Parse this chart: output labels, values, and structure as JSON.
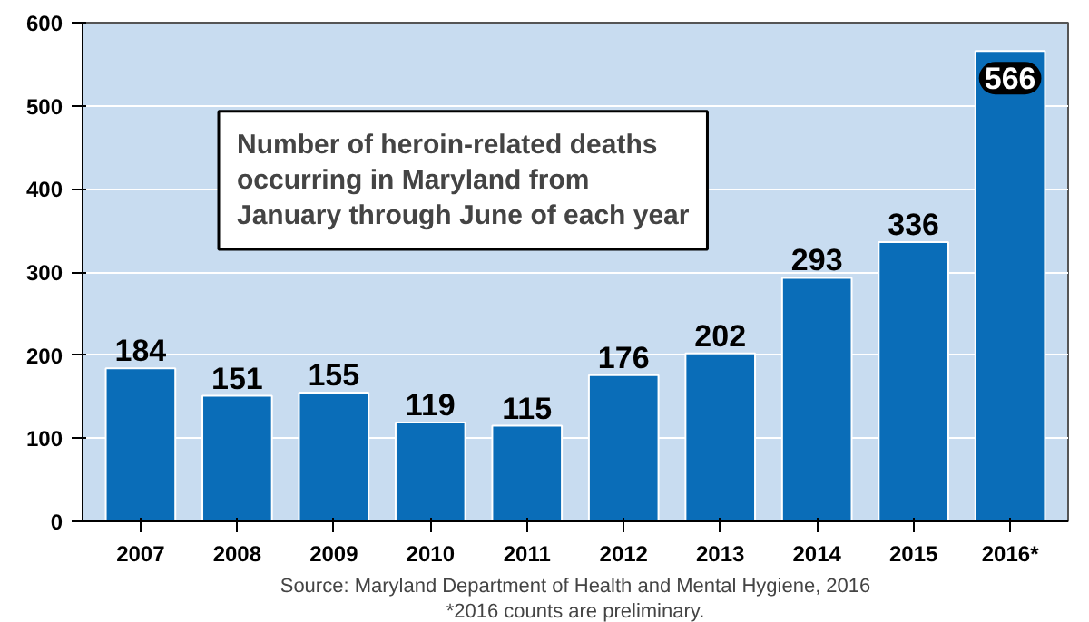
{
  "chart_data": {
    "type": "bar",
    "title": "Number of heroin-related deaths occurring in Maryland from January through June of each year",
    "categories": [
      "2007",
      "2008",
      "2009",
      "2010",
      "2011",
      "2012",
      "2013",
      "2014",
      "2015",
      "2016*"
    ],
    "values": [
      184,
      151,
      155,
      119,
      115,
      176,
      202,
      293,
      336,
      566
    ],
    "color": "#0a6db8",
    "ylim": [
      0,
      600
    ],
    "yticks": [
      0,
      100,
      200,
      300,
      400,
      500,
      600
    ],
    "grid": "y",
    "data_labels": true,
    "annotations": [
      "Source: Maryland Department of Health and Mental Hygiene, 2016",
      "*2016 counts are preliminary."
    ]
  }
}
